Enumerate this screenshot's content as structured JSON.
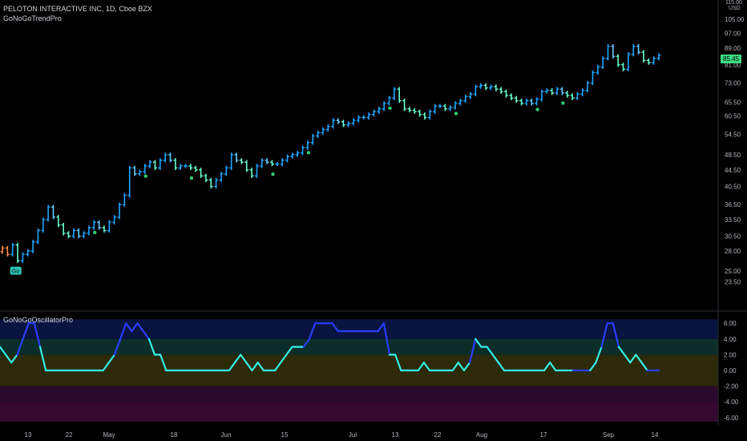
{
  "header": {
    "symbol_line": "PELOTON INTERACTIVE INC, 1D, Cboe BZX",
    "indicator_name": "GoNoGoTrendPro",
    "currency": "USD",
    "top_price": "115.00"
  },
  "oscillator": {
    "name": "GoNoGoOscillatorPro"
  },
  "last_price": "85.45",
  "go_label": "Go",
  "colors": {
    "bright_blue": "#1ea7ff",
    "light_blue": "#66ccff",
    "aqua": "#66ffd0",
    "orange": "#ff8c42",
    "osc_line_cyan": "#33f0e6",
    "osc_line_blue": "#2a3dff",
    "zone_blue": "#0a1440",
    "zone_teal": "#0c2e2a",
    "zone_olive": "#2c2a08",
    "zone_purple": "#2a0a2c",
    "zone_magenta": "#36082e"
  },
  "chart_data": [
    {
      "type": "ohlc",
      "title": "PELOTON INTERACTIVE INC, 1D, Cboe BZX",
      "y_axis": {
        "scale": "log",
        "ticks": [
          "115.00",
          "105.00",
          "97.00",
          "89.00",
          "81.00",
          "73.00",
          "65.50",
          "60.50",
          "54.50",
          "48.50",
          "44.50",
          "40.50",
          "36.50",
          "33.50",
          "30.50",
          "28.00",
          "25.00",
          "23.50"
        ],
        "unit": "USD"
      },
      "x_axis": {
        "ticks": [
          "13",
          "22",
          "May",
          "18",
          "Jun",
          "15",
          "Jul",
          "13",
          "22",
          "Aug",
          "17",
          "Sep",
          "14"
        ]
      },
      "closes": [
        28.5,
        27.5,
        29,
        26.5,
        27.5,
        28,
        29.5,
        31.5,
        33.5,
        36,
        34,
        32.5,
        31,
        30.5,
        31.5,
        30.5,
        31,
        32,
        33,
        32,
        31.5,
        33,
        34,
        36.5,
        38.5,
        45,
        43.5,
        44,
        45.5,
        46.5,
        45,
        47,
        48.5,
        47,
        45,
        45.5,
        45.5,
        45,
        44.5,
        43,
        42,
        40.5,
        42,
        43.5,
        45,
        48.5,
        47,
        46.5,
        44.5,
        43,
        45.5,
        47,
        46.5,
        46,
        46,
        47,
        48,
        48.5,
        49,
        50.5,
        52,
        54,
        55,
        56,
        57,
        59,
        58.5,
        57.5,
        58,
        59,
        60,
        60,
        61,
        62,
        63,
        65,
        67,
        70.5,
        66,
        63,
        62.5,
        62,
        61,
        60,
        62,
        64,
        64,
        63,
        63.5,
        65,
        66,
        67.5,
        68.5,
        71.5,
        72,
        71,
        71.5,
        70.5,
        69.5,
        68,
        67,
        66,
        65,
        66,
        65,
        66.5,
        69.5,
        70,
        69,
        70.5,
        69,
        68,
        67,
        68.5,
        70,
        73,
        77.5,
        80,
        84,
        90,
        85,
        81,
        79,
        86,
        90,
        87,
        83,
        82,
        84,
        85.45
      ],
      "markers": {
        "go_label_bar": 2,
        "dots": [
          18,
          28,
          37,
          53,
          60,
          76,
          89,
          105,
          110
        ]
      }
    },
    {
      "type": "line",
      "title": "GoNoGoOscillatorPro",
      "y_axis": {
        "ticks": [
          "6.00",
          "4.00",
          "2.00",
          "0.00",
          "-2.00",
          "-4.00",
          "-6.00"
        ],
        "range": [
          -6.5,
          6.5
        ]
      },
      "values": [
        3,
        2,
        1,
        2,
        4,
        6,
        6,
        3,
        0,
        0,
        0,
        0,
        0,
        0,
        0,
        0,
        0,
        0,
        0,
        1,
        2,
        4,
        6,
        5,
        6,
        5,
        4,
        2,
        2,
        0,
        0,
        0,
        0,
        0,
        0,
        0,
        0,
        0,
        0,
        0,
        0,
        1,
        2,
        1,
        0,
        1,
        0,
        0,
        0,
        1,
        2,
        3,
        3,
        3,
        4,
        6,
        6,
        6,
        6,
        5,
        5,
        5,
        5,
        5,
        5,
        5,
        5,
        6,
        2,
        2,
        0,
        0,
        0,
        0,
        1,
        0,
        0,
        0,
        0,
        0,
        1,
        0,
        1,
        4,
        3,
        3,
        2,
        1,
        0,
        0,
        0,
        0,
        0,
        0,
        0,
        0,
        1,
        0,
        0,
        0,
        0,
        0,
        0,
        0,
        1,
        3,
        6,
        6,
        3,
        2,
        1,
        2,
        1,
        0,
        0,
        0
      ]
    }
  ]
}
